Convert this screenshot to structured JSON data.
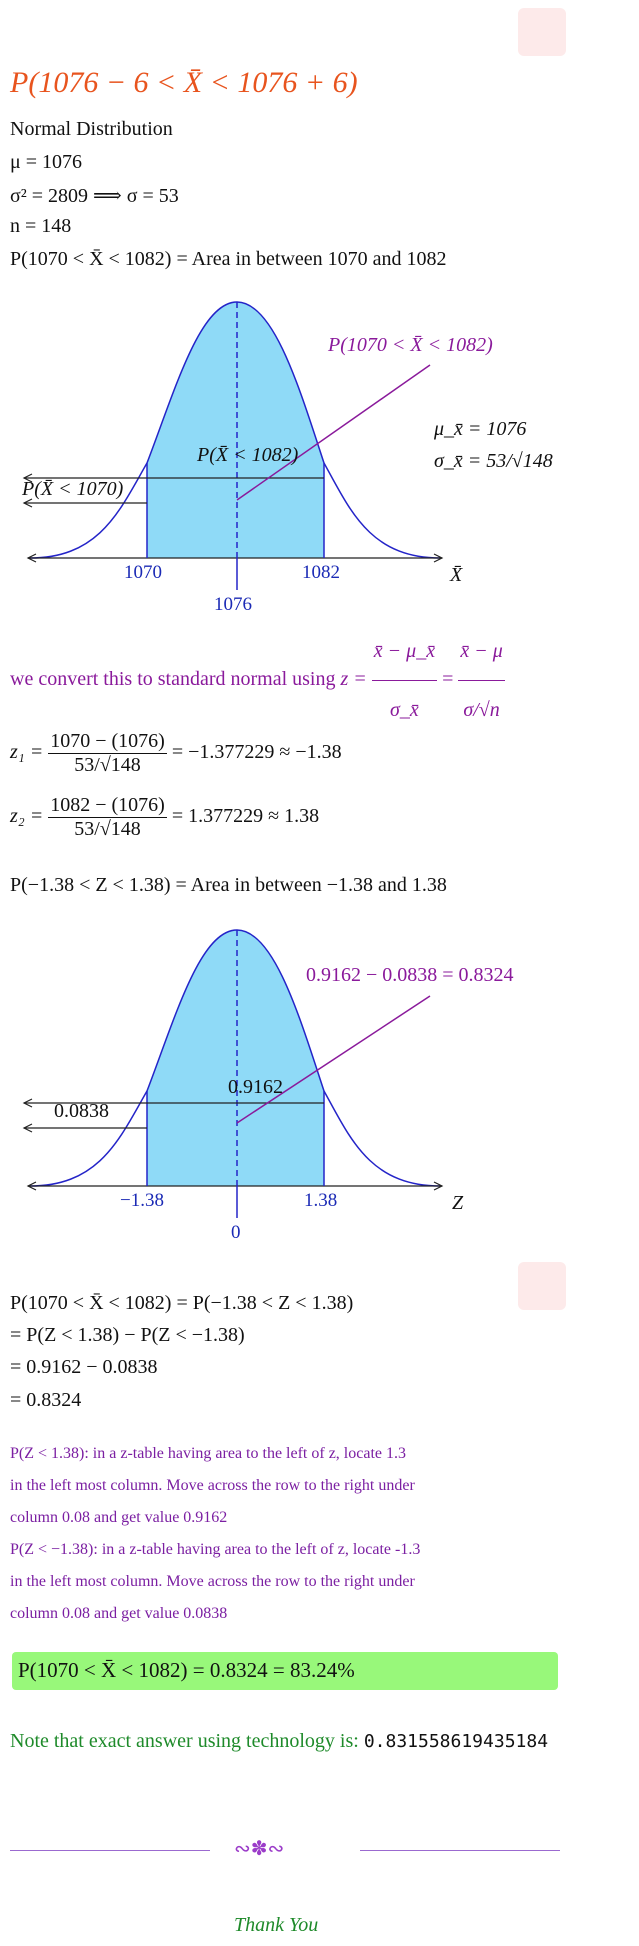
{
  "title": "P(1076 − 6 < X̄ < 1076 + 6)",
  "given": {
    "dist": "Normal Distribution",
    "mu": "μ = 1076",
    "sigma": "σ² = 2809 ⟹ σ = 53",
    "n": "n = 148",
    "prob_area": "P(1070 < X̄ < 1082) = Area in between 1070 and 1082"
  },
  "graph1": {
    "callout": "P(1070 < X̄ < 1082)",
    "inner": "P(X̄ < 1082)",
    "left": "P(X̄ < 1070)",
    "mu_xbar": "μ_x̄ = 1076",
    "sigma_xbar": "σ_x̄ = 53/√148",
    "lower": "1070",
    "upper": "1082",
    "center": "1076",
    "axis": "X̄"
  },
  "convert": {
    "text": "we convert this to standard normal using",
    "z_lhs": "z =",
    "num1": "x̄ − μ_x̄",
    "den1": "σ_x̄",
    "eq": "=",
    "num2": "x̄ − μ",
    "den2": "σ/√n"
  },
  "z1": {
    "lhs": "z₁ =",
    "num": "1070 − (1076)",
    "den": "53/√148",
    "rhs": "= −1.377229 ≈ −1.38"
  },
  "z2": {
    "lhs": "z₂ =",
    "num": "1082 − (1076)",
    "den": "53/√148",
    "rhs": "= 1.377229 ≈ 1.38"
  },
  "z_area": "P(−1.38 < Z < 1.38) = Area in between −1.38 and 1.38",
  "graph2": {
    "callout": "0.9162 − 0.0838 = 0.8324",
    "inner": "0.9162",
    "left": "0.0838",
    "lower": "−1.38",
    "upper": "1.38",
    "center": "0",
    "axis": "Z"
  },
  "steps": [
    "P(1070 < X̄ < 1082) = P(−1.38 < Z < 1.38)",
    "= P(Z < 1.38) − P(Z < −1.38)",
    "= 0.9162 − 0.0838",
    "= 0.8324"
  ],
  "notes": [
    "P(Z < 1.38):  in a z-table having area to the left of z, locate 1.3",
    "in the left most column.  Move across the row to the right under",
    "column 0.08 and get value 0.9162",
    "P(Z < −1.38):  in a z-table having area to the left of z, locate -1.3",
    "in the left most column.  Move across the row to the right under",
    "column 0.08 and get value 0.0838"
  ],
  "answer": "P(1070 < X̄ < 1082) = 0.8324 = 83.24%",
  "note_label": "Note that exact answer using technology is:",
  "note_value": "0.831558619435184",
  "ornament": "∾✽∾",
  "thanks": "Thank You",
  "colors": {
    "title": "#e8541e",
    "purple": "#8a1a9b",
    "blue": "#1b2ab5",
    "shade": "#8fdaf7",
    "answer_bg": "#98f87a",
    "green": "#1e8a2a"
  }
}
